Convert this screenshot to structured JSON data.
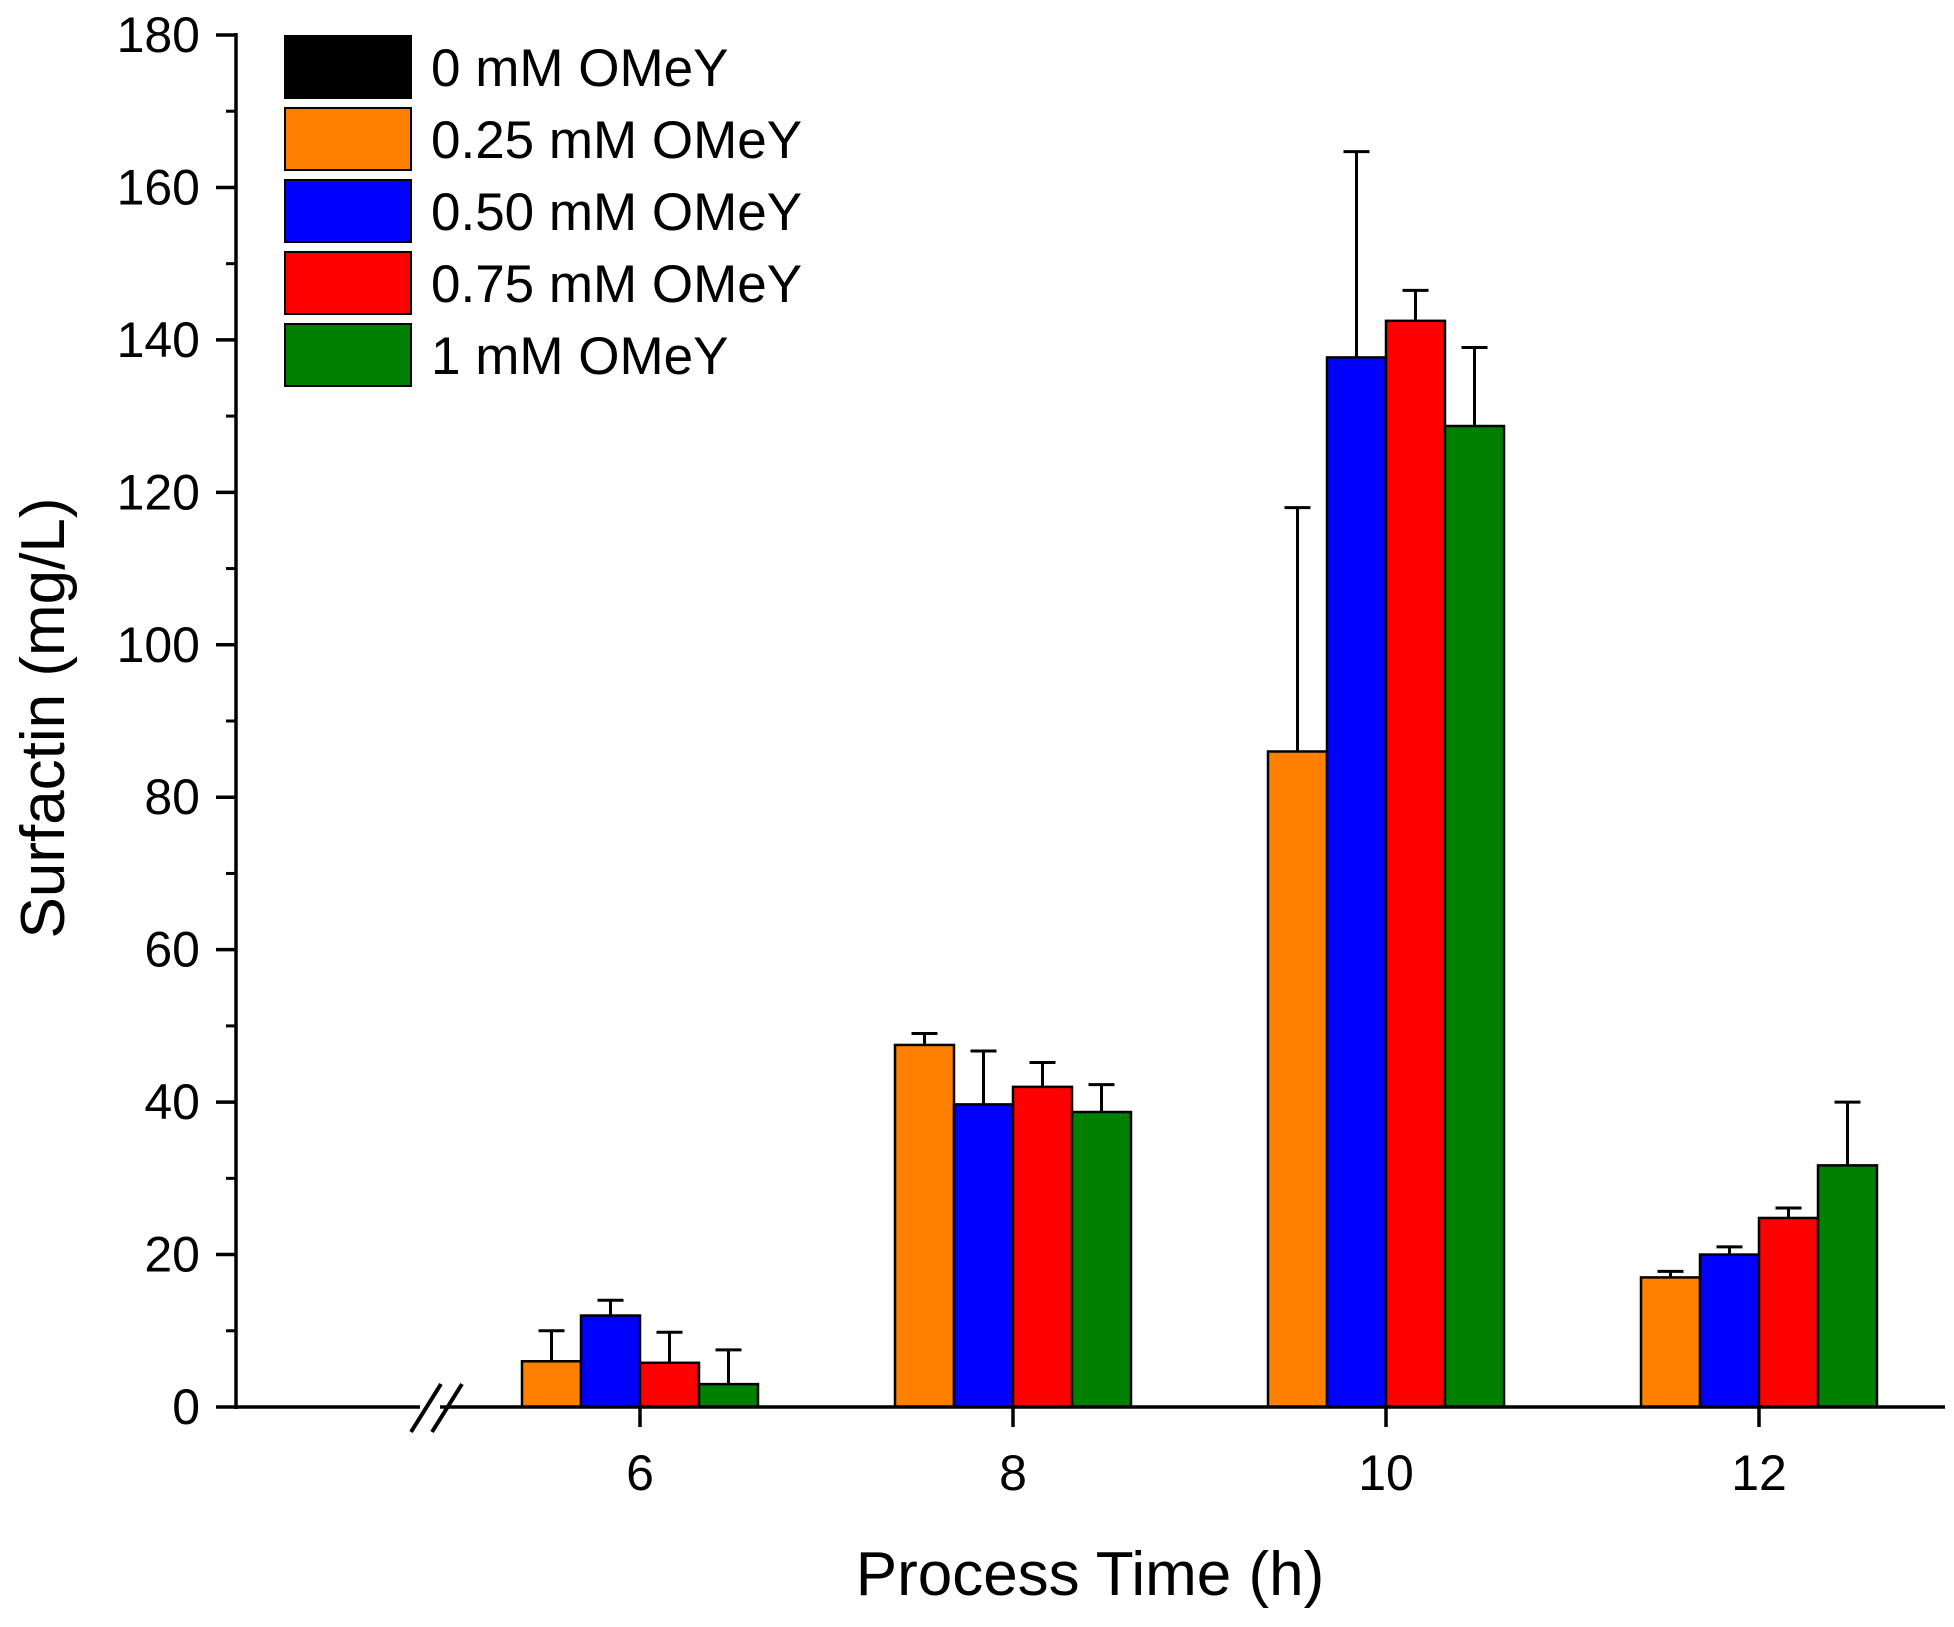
{
  "chart_data": {
    "type": "bar",
    "xlabel": "Process Time (h)",
    "ylabel": "Surfactin (mg/L)",
    "ylim": [
      0,
      180
    ],
    "yticks": [
      0,
      20,
      40,
      60,
      80,
      100,
      120,
      140,
      160,
      180
    ],
    "axis_break": "x-axis break before first category",
    "categories": [
      "6",
      "8",
      "10",
      "12"
    ],
    "series": [
      {
        "name": "0 mM OMeY",
        "color": "#000000",
        "values": [
          null,
          null,
          null,
          null
        ],
        "errors": [
          null,
          null,
          null,
          null
        ]
      },
      {
        "name": "0.25 mM OMeY",
        "color": "#FF8000",
        "values": [
          6,
          47.5,
          86,
          17
        ],
        "errors": [
          4,
          1.5,
          32,
          0.8
        ]
      },
      {
        "name": "0.50 mM OMeY",
        "color": "#0000FF",
        "values": [
          12,
          39.7,
          137.7,
          20
        ],
        "errors": [
          2,
          7,
          27,
          1
        ]
      },
      {
        "name": "0.75 mM OMeY",
        "color": "#FF0000",
        "values": [
          5.8,
          42,
          142.5,
          24.8
        ],
        "errors": [
          4,
          3.2,
          4,
          1.3
        ]
      },
      {
        "name": "1 mM OMeY",
        "color": "#008000",
        "values": [
          3,
          38.7,
          128.7,
          31.7
        ],
        "errors": [
          4.5,
          3.6,
          10.3,
          8.3
        ]
      }
    ],
    "legend_position": "top-left"
  }
}
